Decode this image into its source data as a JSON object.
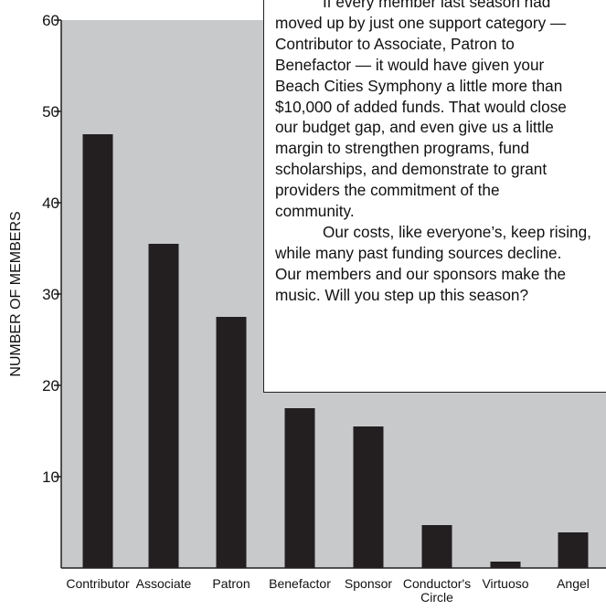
{
  "chart_data": {
    "type": "bar",
    "ylabel": "NUMBER OF MEMBERS",
    "ylim": [
      0,
      60
    ],
    "yticks": [
      10,
      20,
      30,
      40,
      50,
      60
    ],
    "grid": false,
    "categories": [
      "Contributor",
      "Associate",
      "Patron",
      "Benefactor",
      "Sponsor",
      "Conductor's Circle",
      "Virtuoso",
      "Angel"
    ],
    "category_lines": [
      [
        "Contributor"
      ],
      [
        "Associate"
      ],
      [
        "Patron"
      ],
      [
        "Benefactor"
      ],
      [
        "Sponsor"
      ],
      [
        "Conductor's",
        "Circle"
      ],
      [
        "Virtuoso"
      ],
      [
        "Angel"
      ]
    ],
    "values": [
      47.5,
      35.5,
      27.5,
      17.5,
      15.5,
      4.7,
      0.7,
      3.9
    ],
    "colors": {
      "bar": "#231f20",
      "plot_background": "#c8c9cb",
      "axis": "#231f20"
    }
  },
  "callout": {
    "paragraph_1_lines": [
      "If every member last season had",
      "moved up by just one support category —",
      "Contributor to Associate, Patron to",
      "Benefactor — it would have given your",
      "Beach Cities Symphony a little more than",
      "$10,000 of added funds. That would close",
      "our  budget gap, and even give us a little",
      "margin to strengthen programs, fund",
      "scholarships, and demonstrate to grant",
      "providers the commitment of the",
      "community."
    ],
    "paragraph_2_lines": [
      "Our costs, like everyone’s, keep rising,",
      "while many past funding sources decline.",
      "Our members and our sponsors make the",
      "music. Will you step up this season?"
    ]
  }
}
